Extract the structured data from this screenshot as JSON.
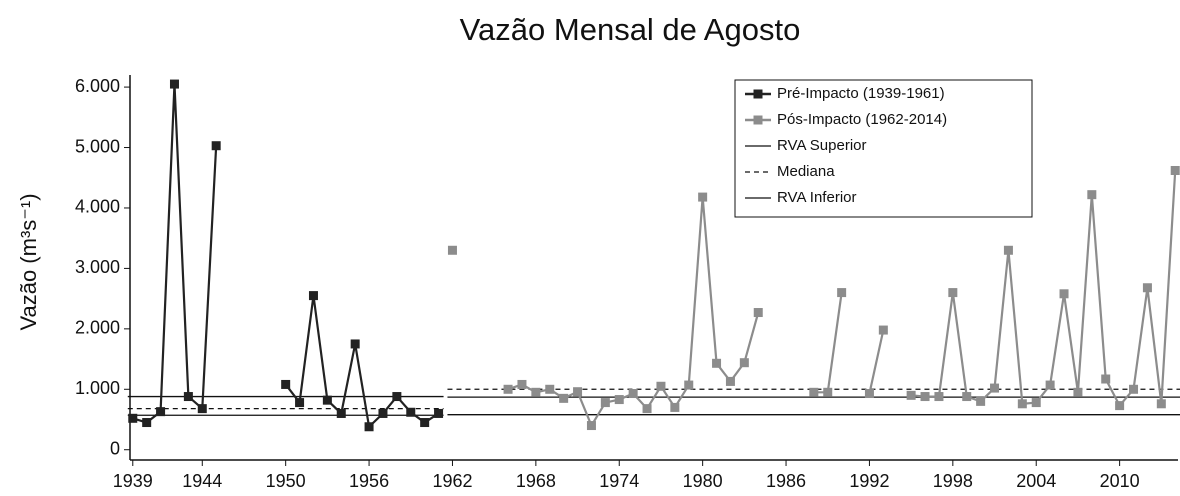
{
  "chart_data": {
    "type": "line",
    "title": "Vazão Mensal de Agosto",
    "y_label": "Vazão (m³s⁻¹)",
    "x": [
      1939,
      1940,
      1941,
      1942,
      1943,
      1944,
      1945,
      1946,
      1947,
      1948,
      1949,
      1950,
      1951,
      1952,
      1953,
      1954,
      1955,
      1956,
      1957,
      1958,
      1959,
      1960,
      1961,
      1962,
      1963,
      1964,
      1965,
      1966,
      1967,
      1968,
      1969,
      1970,
      1971,
      1972,
      1973,
      1974,
      1975,
      1976,
      1977,
      1978,
      1979,
      1980,
      1981,
      1982,
      1983,
      1984,
      1985,
      1986,
      1987,
      1988,
      1989,
      1990,
      1991,
      1992,
      1993,
      1994,
      1995,
      1996,
      1997,
      1998,
      1999,
      2000,
      2001,
      2002,
      2003,
      2004,
      2005,
      2006,
      2007,
      2008,
      2009,
      2010,
      2011,
      2012,
      2013,
      2014
    ],
    "series": [
      {
        "name": "Pré-Impacto (1939-1961)",
        "color": "#222222",
        "values": [
          520,
          450,
          630,
          6050,
          880,
          680,
          5030,
          null,
          null,
          null,
          null,
          1080,
          780,
          2550,
          820,
          600,
          1750,
          380,
          600,
          880,
          620,
          450,
          600,
          null,
          null,
          null,
          null,
          null,
          null,
          null,
          null,
          null,
          null,
          null,
          null,
          null,
          null,
          null,
          null,
          null,
          null,
          null,
          null,
          null,
          null,
          null,
          null,
          null,
          null,
          null,
          null,
          null,
          null,
          null,
          null,
          null,
          null,
          null,
          null,
          null,
          null,
          null,
          null,
          null,
          null,
          null,
          null,
          null,
          null,
          null,
          null,
          null,
          null,
          null,
          null,
          null
        ]
      },
      {
        "name": "Pós-Impacto (1962-2014)",
        "color": "#8c8c8c",
        "values": [
          null,
          null,
          null,
          null,
          null,
          null,
          null,
          null,
          null,
          null,
          null,
          null,
          null,
          null,
          null,
          null,
          null,
          null,
          null,
          null,
          null,
          null,
          null,
          3300,
          null,
          null,
          null,
          1000,
          1080,
          950,
          1000,
          850,
          960,
          400,
          780,
          830,
          930,
          680,
          1050,
          700,
          1070,
          4180,
          1430,
          1130,
          1440,
          2270,
          null,
          null,
          null,
          950,
          950,
          2600,
          null,
          930,
          1980,
          null,
          900,
          880,
          880,
          2600,
          880,
          800,
          1020,
          3300,
          760,
          780,
          1070,
          2580,
          950,
          4220,
          1170,
          730,
          1000,
          2680,
          760,
          4620
        ]
      }
    ],
    "reference_lines": [
      {
        "name": "RVA Superior",
        "style": "solid",
        "values": [
          880,
          870
        ]
      },
      {
        "name": "Mediana",
        "style": "dashed",
        "values": [
          680,
          1000
        ]
      },
      {
        "name": "RVA Inferior",
        "style": "solid",
        "values": [
          570,
          580
        ]
      }
    ],
    "xlim": [
      1938.8,
      2014.2
    ],
    "xticks": [
      1939,
      1944,
      1950,
      1956,
      1962,
      1968,
      1974,
      1980,
      1986,
      1992,
      1998,
      2004,
      2010
    ],
    "ylim": [
      -170,
      6200
    ],
    "yticks": [
      {
        "value": 0,
        "label": "0"
      },
      {
        "value": 1000,
        "label": "1.000"
      },
      {
        "value": 2000,
        "label": "2.000"
      },
      {
        "value": 3000,
        "label": "3.000"
      },
      {
        "value": 4000,
        "label": "4.000"
      },
      {
        "value": 5000,
        "label": "5.000"
      },
      {
        "value": 6000,
        "label": "6.000"
      }
    ],
    "legend": "upper right"
  }
}
